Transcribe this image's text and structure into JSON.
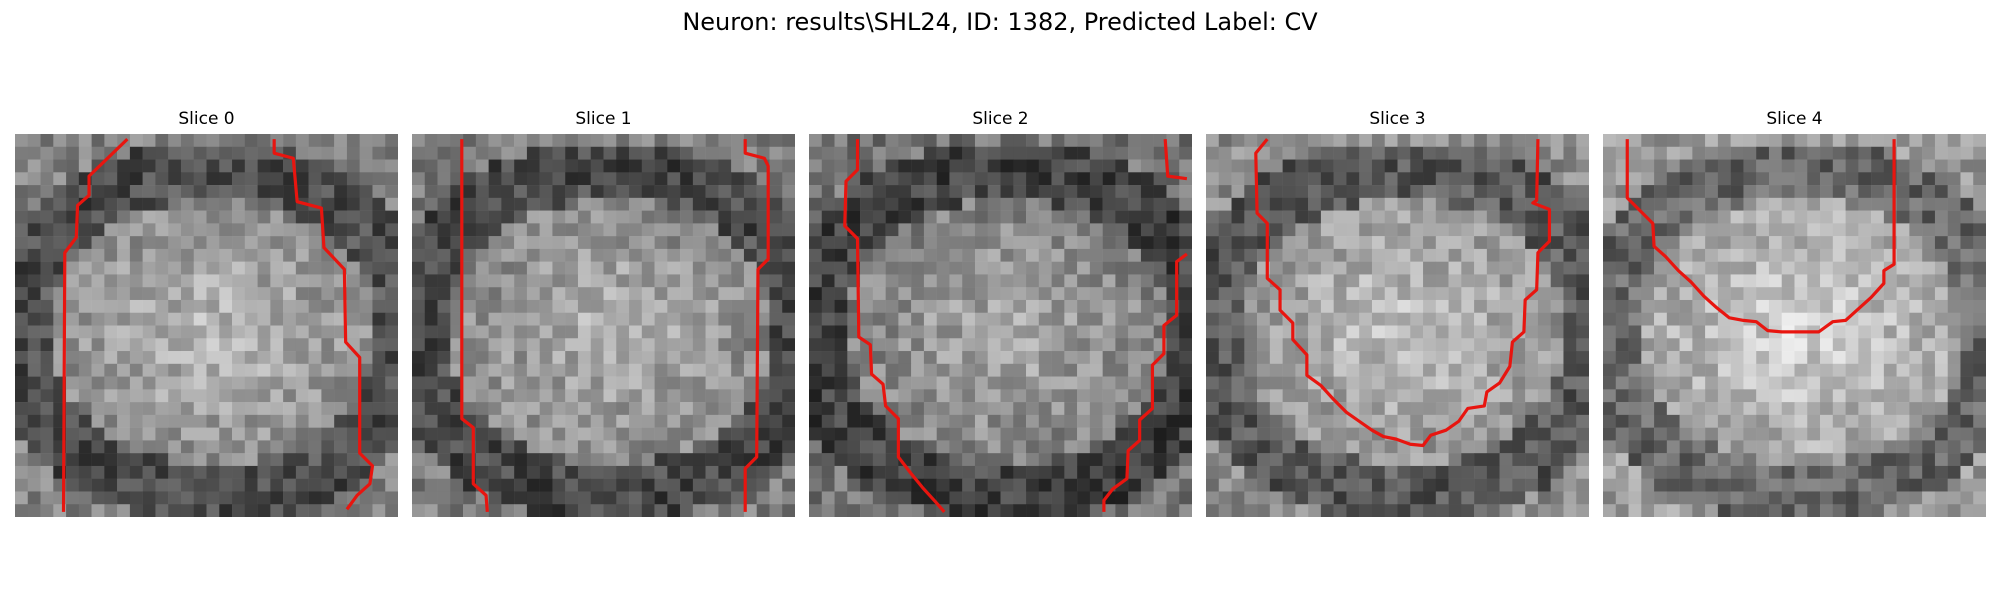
{
  "figure": {
    "title": "Neuron: results\\SHL24, ID: 1382, Predicted Label: CV"
  },
  "panels": [
    {
      "title": "Slice 0",
      "image": {
        "grid": 30,
        "base": 130,
        "background": "#8a8a8a"
      },
      "segmentation_color": "#e8150f",
      "segmentation_paths": [
        [
          [
            8.8,
            0.4
          ],
          [
            5.8,
            3.3
          ],
          [
            5.8,
            4.8
          ],
          [
            4.9,
            5.6
          ],
          [
            4.8,
            8.1
          ],
          [
            3.9,
            9.3
          ],
          [
            3.8,
            29.6
          ]
        ],
        [
          [
            20.3,
            0.4
          ],
          [
            20.3,
            1.5
          ],
          [
            21.8,
            1.9
          ],
          [
            22.1,
            5.3
          ],
          [
            24.0,
            5.8
          ],
          [
            24.2,
            8.9
          ],
          [
            25.8,
            10.6
          ],
          [
            25.9,
            16.3
          ],
          [
            27.0,
            17.5
          ],
          [
            27.0,
            25.0
          ],
          [
            28.0,
            26.0
          ],
          [
            27.8,
            27.4
          ],
          [
            26.8,
            28.3
          ],
          [
            26.0,
            29.4
          ]
        ]
      ]
    },
    {
      "title": "Slice 1",
      "image": {
        "grid": 30,
        "base": 125,
        "background": "#8a8a8a"
      },
      "segmentation_color": "#e8150f",
      "segmentation_paths": [
        [
          [
            3.9,
            0.4
          ],
          [
            3.9,
            22.3
          ],
          [
            4.8,
            23.0
          ],
          [
            4.8,
            27.4
          ],
          [
            5.8,
            28.3
          ],
          [
            5.9,
            29.6
          ]
        ],
        [
          [
            26.1,
            0.4
          ],
          [
            26.1,
            1.5
          ],
          [
            27.6,
            1.9
          ],
          [
            27.9,
            2.5
          ],
          [
            27.9,
            9.8
          ],
          [
            27.1,
            10.6
          ],
          [
            27.0,
            25.3
          ],
          [
            26.1,
            26.2
          ],
          [
            26.1,
            29.6
          ]
        ]
      ]
    },
    {
      "title": "Slice 2",
      "image": {
        "grid": 30,
        "base": 118,
        "background": "#858585"
      },
      "segmentation_color": "#e8150f",
      "segmentation_paths": [
        [
          [
            3.8,
            0.4
          ],
          [
            3.8,
            2.8
          ],
          [
            2.9,
            3.7
          ],
          [
            2.8,
            7.2
          ],
          [
            3.8,
            8.2
          ],
          [
            3.9,
            15.9
          ],
          [
            4.8,
            16.5
          ],
          [
            4.9,
            18.8
          ],
          [
            5.8,
            19.6
          ],
          [
            6.0,
            21.3
          ],
          [
            7.0,
            22.3
          ],
          [
            7.0,
            25.3
          ],
          [
            8.0,
            26.6
          ],
          [
            8.9,
            27.7
          ],
          [
            9.9,
            28.8
          ],
          [
            10.6,
            29.6
          ]
        ],
        [
          [
            27.9,
            0.4
          ],
          [
            28.1,
            3.3
          ],
          [
            29.6,
            3.5
          ]
        ],
        [
          [
            29.6,
            9.4
          ],
          [
            28.8,
            10.0
          ],
          [
            28.8,
            14.2
          ],
          [
            27.8,
            15.0
          ],
          [
            27.8,
            17.2
          ],
          [
            26.9,
            18.1
          ],
          [
            26.9,
            21.5
          ],
          [
            25.9,
            22.4
          ],
          [
            25.9,
            24.0
          ],
          [
            25.0,
            24.8
          ],
          [
            24.9,
            27.0
          ],
          [
            23.8,
            27.8
          ],
          [
            23.1,
            28.7
          ],
          [
            23.1,
            29.6
          ]
        ]
      ]
    },
    {
      "title": "Slice 3",
      "image": {
        "grid": 30,
        "base": 140,
        "background": "#8f8f8f"
      },
      "segmentation_color": "#e8150f",
      "segmentation_paths": [
        [
          [
            4.8,
            0.4
          ],
          [
            3.9,
            1.5
          ],
          [
            4.0,
            6.2
          ],
          [
            4.8,
            7.0
          ],
          [
            4.8,
            11.3
          ],
          [
            5.8,
            12.2
          ],
          [
            5.8,
            13.8
          ],
          [
            6.8,
            14.8
          ],
          [
            6.8,
            16.1
          ],
          [
            7.9,
            17.3
          ],
          [
            7.9,
            18.9
          ],
          [
            9.0,
            19.7
          ],
          [
            10.0,
            20.8
          ],
          [
            11.0,
            21.8
          ],
          [
            12.0,
            22.5
          ],
          [
            13.0,
            23.2
          ],
          [
            13.9,
            23.7
          ],
          [
            14.9,
            23.9
          ],
          [
            16.0,
            24.3
          ],
          [
            17.0,
            24.4
          ],
          [
            17.6,
            23.6
          ],
          [
            18.8,
            23.2
          ],
          [
            19.8,
            22.5
          ],
          [
            20.5,
            21.5
          ],
          [
            21.8,
            21.3
          ],
          [
            22.0,
            20.2
          ],
          [
            23.0,
            19.5
          ],
          [
            23.8,
            18.2
          ],
          [
            24.0,
            16.3
          ],
          [
            24.9,
            15.5
          ],
          [
            25.0,
            13.0
          ],
          [
            25.9,
            12.2
          ],
          [
            26.0,
            9.3
          ],
          [
            26.9,
            8.4
          ],
          [
            26.9,
            5.9
          ],
          [
            25.6,
            5.4
          ],
          [
            25.9,
            5.2
          ],
          [
            26.0,
            0.4
          ]
        ]
      ]
    },
    {
      "title": "Slice 4",
      "image": {
        "grid": 30,
        "base": 155,
        "background": "#9a9a9a"
      },
      "segmentation_color": "#e8150f",
      "segmentation_paths": [
        [
          [
            1.9,
            0.4
          ],
          [
            1.9,
            5.0
          ],
          [
            2.8,
            5.9
          ],
          [
            3.9,
            7.0
          ],
          [
            4.0,
            8.8
          ],
          [
            4.9,
            9.6
          ],
          [
            5.9,
            10.7
          ],
          [
            6.9,
            11.6
          ],
          [
            7.9,
            12.7
          ],
          [
            8.9,
            13.6
          ],
          [
            9.9,
            14.4
          ],
          [
            11.0,
            14.6
          ],
          [
            12.0,
            14.7
          ],
          [
            12.9,
            15.4
          ],
          [
            14.0,
            15.5
          ],
          [
            15.0,
            15.5
          ],
          [
            16.0,
            15.5
          ],
          [
            16.9,
            15.5
          ],
          [
            18.0,
            14.7
          ],
          [
            19.0,
            14.6
          ],
          [
            20.0,
            13.7
          ],
          [
            21.0,
            12.8
          ],
          [
            22.0,
            11.7
          ],
          [
            22.0,
            10.7
          ],
          [
            22.8,
            10.2
          ],
          [
            22.8,
            0.4
          ]
        ]
      ]
    }
  ]
}
